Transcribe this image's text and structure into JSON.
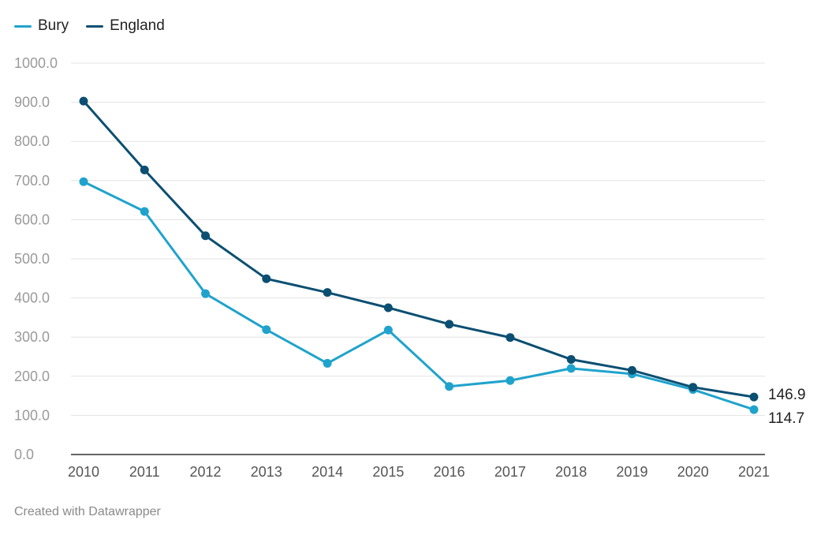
{
  "chart_data": {
    "type": "line",
    "categories": [
      "2010",
      "2011",
      "2012",
      "2013",
      "2014",
      "2015",
      "2016",
      "2017",
      "2018",
      "2019",
      "2020",
      "2021"
    ],
    "series": [
      {
        "name": "Bury",
        "color": "#1fa3cc",
        "values": [
          697,
          621,
          411,
          319,
          233,
          318,
          174,
          189,
          220,
          206,
          166,
          114.7
        ]
      },
      {
        "name": "England",
        "color": "#0b4f72",
        "values": [
          903,
          727,
          559,
          449,
          414,
          375,
          333,
          299,
          243,
          215,
          172,
          146.9
        ]
      }
    ],
    "ylim": [
      0,
      1000
    ],
    "yticks": [
      "0.0",
      "100.0",
      "200.0",
      "300.0",
      "400.0",
      "500.0",
      "600.0",
      "700.0",
      "800.0",
      "900.0",
      "1000.0"
    ],
    "end_labels": [
      "146.9",
      "114.7"
    ],
    "grid": true,
    "legend": "top-left"
  },
  "footer": {
    "credit": "Created with Datawrapper"
  }
}
